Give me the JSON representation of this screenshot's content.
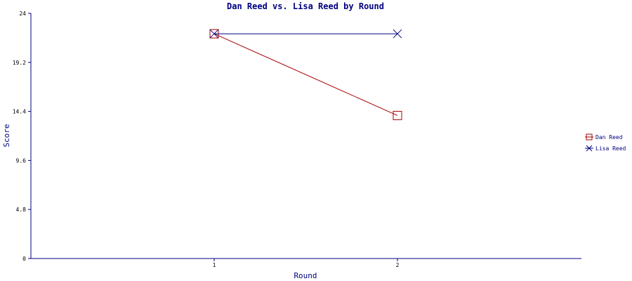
{
  "chart_data": {
    "type": "line",
    "title": "Dan Reed vs. Lisa Reed by Round",
    "xlabel": "Round",
    "ylabel": "Score",
    "categories": [
      "1",
      "2"
    ],
    "ylim": [
      0,
      24
    ],
    "yticks": [
      "0",
      "4.8",
      "9.6",
      "14.4",
      "19.2",
      "24"
    ],
    "grid": false,
    "legend_position": "right",
    "series": [
      {
        "name": "Dan Reed",
        "values": [
          22,
          14
        ],
        "color": "#aa0000",
        "marker": "square"
      },
      {
        "name": "Lisa Reed",
        "values": [
          22,
          22
        ],
        "color": "#000080",
        "marker": "x"
      }
    ]
  }
}
